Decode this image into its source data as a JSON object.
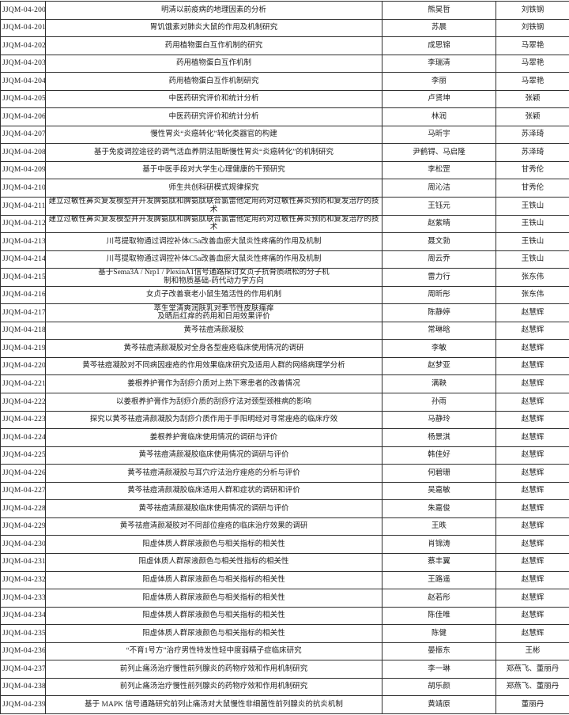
{
  "colors": {
    "border-color": "#2f2f2f",
    "text-color": "#1c1c1c",
    "bg-color": "#ffffff"
  },
  "table": {
    "rows": [
      {
        "id": "JJQM-04-200",
        "title": "明清以前疫病的地理因素的分析",
        "student": "熊昊哲",
        "advisor": "刘铁钢"
      },
      {
        "id": "JJQM-04-201",
        "title": "胃饥饿素对肺炎大鼠的作用及机制研究",
        "student": "苏晨",
        "advisor": "刘铁钢"
      },
      {
        "id": "JJQM-04-202",
        "title": "药用植物蛋白互作机制的研究",
        "student": "成思锦",
        "advisor": "马翠艳"
      },
      {
        "id": "JJQM-04-203",
        "title": "药用植物蛋白互作机制",
        "student": "李瑞清",
        "advisor": "马翠艳"
      },
      {
        "id": "JJQM-04-204",
        "title": "药用植物蛋白互作机制研究",
        "student": "李丽",
        "advisor": "马翠艳"
      },
      {
        "id": "JJQM-04-205",
        "title": "中医药研究评价和统计分析",
        "student": "卢贤坤",
        "advisor": "张颖"
      },
      {
        "id": "JJQM-04-206",
        "title": "中医药研究评价和统计分析",
        "student": "林润",
        "advisor": "张颖"
      },
      {
        "id": "JJQM-04-207",
        "title": "慢性胃炎“炎癌转化”转化类器官的构建",
        "student": "马昕宇",
        "advisor": "苏泽琦"
      },
      {
        "id": "JJQM-04-208",
        "title": "基于免疫调控途径的调气活血养阴法阻断慢性胃炎“炎癌转化”的机制研究",
        "student": "尹鹤锝、马启隆",
        "advisor": "苏泽琦"
      },
      {
        "id": "JJQM-04-209",
        "title": "基于中医手段对大学生心理健康的干预研究",
        "student": "李松罡",
        "advisor": "甘秀伦"
      },
      {
        "id": "JJQM-04-210",
        "title": "师生共创科研模式规律探究",
        "student": "周沁洁",
        "advisor": "甘秀伦"
      },
      {
        "id": "JJQM-04-211",
        "title": "建立过敏性鼻炎复发模型并开发脾氨肽和脾氨肽联合氯雷他定用药对过敏性鼻炎预防和复发治疗的技术",
        "student": "王钰元",
        "advisor": "王铁山"
      },
      {
        "id": "JJQM-04-212",
        "title": "建立过敏性鼻炎复发模型并开发脾氨肽和脾氨肽联合氯雷他定用药对过敏性鼻炎预防和复发治疗的技术",
        "student": "赵紫晴",
        "advisor": "王铁山"
      },
      {
        "id": "JJQM-04-213",
        "title": "川芎提取物通过调控补体C5a改善血瘀大鼠炎性疼痛的作用及机制",
        "student": "聂文勃",
        "advisor": "王铁山"
      },
      {
        "id": "JJQM-04-214",
        "title": "川芎提取物通过调控补体C5a改善血瘀大鼠炎性疼痛的作用及机制",
        "student": "周云乔",
        "advisor": "王铁山"
      },
      {
        "id": "JJQM-04-215",
        "title": "基于Sema3A / Nrp1 / PlexinA1信号通路探讨女贞子抗骨质疏松的分子机\n制和物质基础-药代动力学方向",
        "student": "雷力行",
        "advisor": "张东伟"
      },
      {
        "id": "JJQM-04-216",
        "title": "女贞子改善衰老小鼠生殖活性的作用机制",
        "student": "周昕彤",
        "advisor": "张东伟"
      },
      {
        "id": "JJQM-04-217",
        "title": "萃生堂清爽润肤乳对季节性皮肤瘙痒\n及晒后红痒的药用和日用效果评价",
        "student": "陈静婷",
        "advisor": "赵慧辉"
      },
      {
        "id": "JJQM-04-218",
        "title": "黄芩祛痘清颜凝胶",
        "student": "常琳晗",
        "advisor": "赵慧辉"
      },
      {
        "id": "JJQM-04-219",
        "title": "黄芩祛痘清颜凝胶对全身各型痤疮临床使用情况的调研",
        "student": "李敏",
        "advisor": "赵慧辉"
      },
      {
        "id": "JJQM-04-220",
        "title": "黄芩祛痘凝胶对不同病因痤疮的作用效果临床研究及适用人群的网络病理学分析",
        "student": "赵梦亚",
        "advisor": "赵慧辉"
      },
      {
        "id": "JJQM-04-221",
        "title": "姜根养护膏作为刮痧介质对上热下寒患者的改善情况",
        "student": "满鞅",
        "advisor": "赵慧辉"
      },
      {
        "id": "JJQM-04-222",
        "title": "以姜根养护膏作为刮痧介质的刮痧疗法对颈型颈椎病的影响",
        "student": "孙雨",
        "advisor": "赵慧辉"
      },
      {
        "id": "JJQM-04-223",
        "title": "探究以黄芩祛痘清颜凝胶为刮痧介质作用于手阳明经对寻常痤疮的临床疗效",
        "student": "马静玲",
        "advisor": "赵慧辉"
      },
      {
        "id": "JJQM-04-224",
        "title": "姜根养护膏临床使用情况的调研与评价",
        "student": "杨景淇",
        "advisor": "赵慧辉"
      },
      {
        "id": "JJQM-04-225",
        "title": "黄芩祛痘清颜凝胶临床使用情况的调研与评价",
        "student": "韩佳好",
        "advisor": "赵慧辉"
      },
      {
        "id": "JJQM-04-226",
        "title": "黄芩祛痘清颜凝胶与耳穴疗法治疗痤疮的分析与评价",
        "student": "何碧珊",
        "advisor": "赵慧辉"
      },
      {
        "id": "JJQM-04-227",
        "title": "黄芩祛痘清颜凝胶临床适用人群和症状的调研和评价",
        "student": "吴嘉敏",
        "advisor": "赵慧辉"
      },
      {
        "id": "JJQM-04-228",
        "title": "黄芩祛痘清颜凝胶临床使用情况的调研与评价",
        "student": "朱嘉俊",
        "advisor": "赵慧辉"
      },
      {
        "id": "JJQM-04-229",
        "title": "黄芩祛痘清颜凝胶对不同部位痤疮的临床治疗效果的调研",
        "student": "王昳",
        "advisor": "赵慧辉"
      },
      {
        "id": "JJQM-04-230",
        "title": "阳虚体质人群尿液颜色与相关指标的相关性",
        "student": "肖锦涛",
        "advisor": "赵慧辉"
      },
      {
        "id": "JJQM-04-231",
        "title": "阳虚体质人群尿液颜色与相关性指标的相关性",
        "student": "蔡丰翼",
        "advisor": "赵慧辉"
      },
      {
        "id": "JJQM-04-232",
        "title": "阳虚体质人群尿液颜色与相关指标的相关性",
        "student": "王路遥",
        "advisor": "赵慧辉"
      },
      {
        "id": "JJQM-04-233",
        "title": "阳虚体质人群尿液颜色与相关指标的相关性",
        "student": "赵若彤",
        "advisor": "赵慧辉"
      },
      {
        "id": "JJQM-04-234",
        "title": "阳虚体质人群尿液颜色与相关指标的相关性",
        "student": "陈佳唯",
        "advisor": "赵慧辉"
      },
      {
        "id": "JJQM-04-235",
        "title": "阳虚体质人群尿液颜色与相关指标的相关性",
        "student": "陈健",
        "advisor": "赵慧辉"
      },
      {
        "id": "JJQM-04-236",
        "title": "“不育1号方”治疗男性特发性轻中度弱精子症临床研究",
        "student": "晏振东",
        "advisor": "王彬"
      },
      {
        "id": "JJQM-04-237",
        "title": "前列止痛汤治疗慢性前列腺炎的药物疗效和作用机制研究",
        "student": "李一琳",
        "advisor": "郑燕飞、董丽丹"
      },
      {
        "id": "JJQM-04-238",
        "title": "前列止痛汤治疗慢性前列腺炎的药物疗效和作用机制研究",
        "student": "胡乐颜",
        "advisor": "郑燕飞、董丽丹"
      },
      {
        "id": "JJQM-04-239",
        "title": "基于 MAPK 信号通路研究前列止痛汤对大鼠慢性非细菌性前列腺炎的抗炎机制",
        "student": "黄靖原",
        "advisor": "董丽丹"
      }
    ]
  }
}
